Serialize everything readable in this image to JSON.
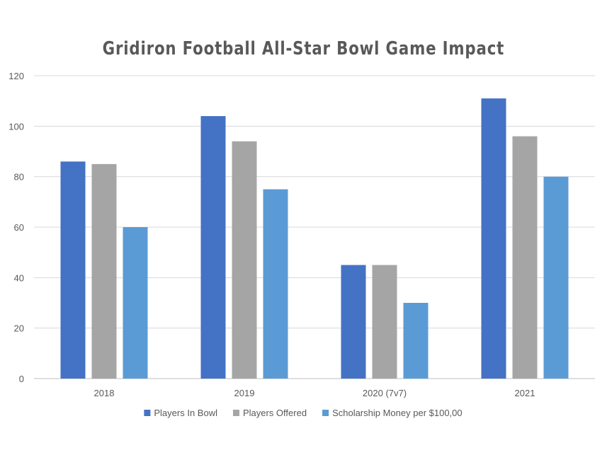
{
  "chart_data": {
    "type": "bar",
    "title": "Gridiron Football All-Star Bowl Game Impact",
    "xlabel": "",
    "ylabel": "",
    "categories": [
      "2018",
      "2019",
      "2020 (7v7)",
      "2021"
    ],
    "series": [
      {
        "name": "Players In Bowl",
        "values": [
          86,
          104,
          45,
          111
        ],
        "color": "#4472C4"
      },
      {
        "name": "Players Offered",
        "values": [
          85,
          94,
          45,
          96
        ],
        "color": "#A5A5A5"
      },
      {
        "name": "Scholarship Money per $100,00",
        "values": [
          60,
          75,
          30,
          80
        ],
        "color": "#5B9BD5"
      }
    ],
    "ylim": [
      0,
      120
    ],
    "yticks": [
      0,
      20,
      40,
      60,
      80,
      100,
      120
    ],
    "grid": true,
    "legend_position": "bottom"
  }
}
